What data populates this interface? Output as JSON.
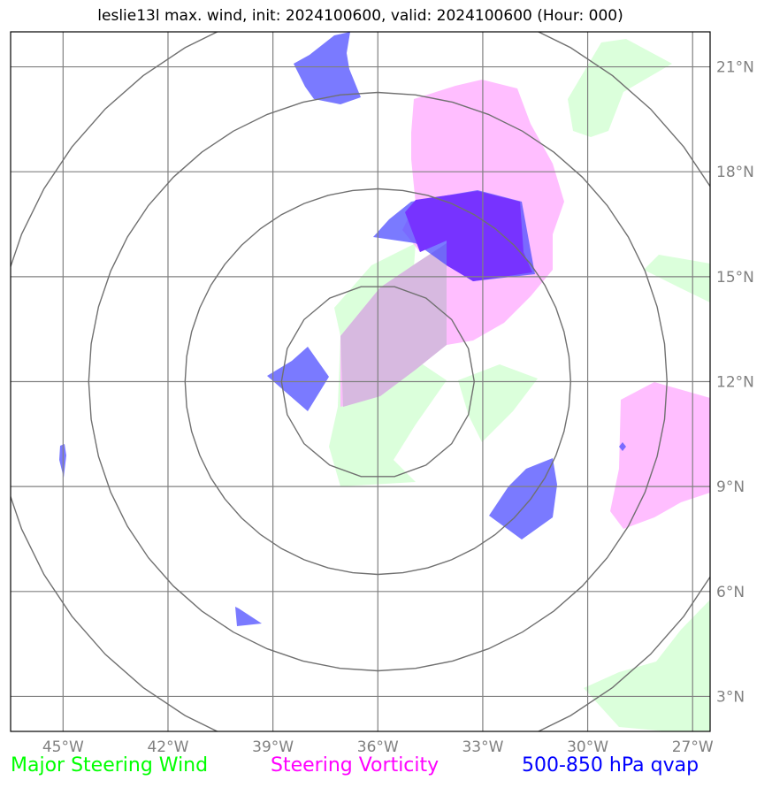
{
  "title": "leslie13l max. wind, init: 2024100600, valid: 2024100600 (Hour: 000)",
  "lon_ticks": [
    "45°W",
    "42°W",
    "39°W",
    "36°W",
    "33°W",
    "30°W",
    "27°W"
  ],
  "lat_ticks": [
    "21°N",
    "18°N",
    "15°N",
    "12°N",
    "9°N",
    "6°N",
    "3°N"
  ],
  "legend": {
    "steering_wind": "Major Steering Wind",
    "steering_vorticity": "Steering Vorticity",
    "qvap": "500-850 hPa qvap"
  },
  "colors": {
    "steering_wind": "#00ff00",
    "steering_vorticity": "#ff00ff",
    "qvap": "#0000ff",
    "grid": "#808080"
  },
  "map": {
    "lon_range": [
      -46.5,
      -26.5
    ],
    "lat_range": [
      2.0,
      22.0
    ],
    "center": {
      "lon": -36.0,
      "lat": 12.0
    },
    "range_ring_count": 4
  }
}
